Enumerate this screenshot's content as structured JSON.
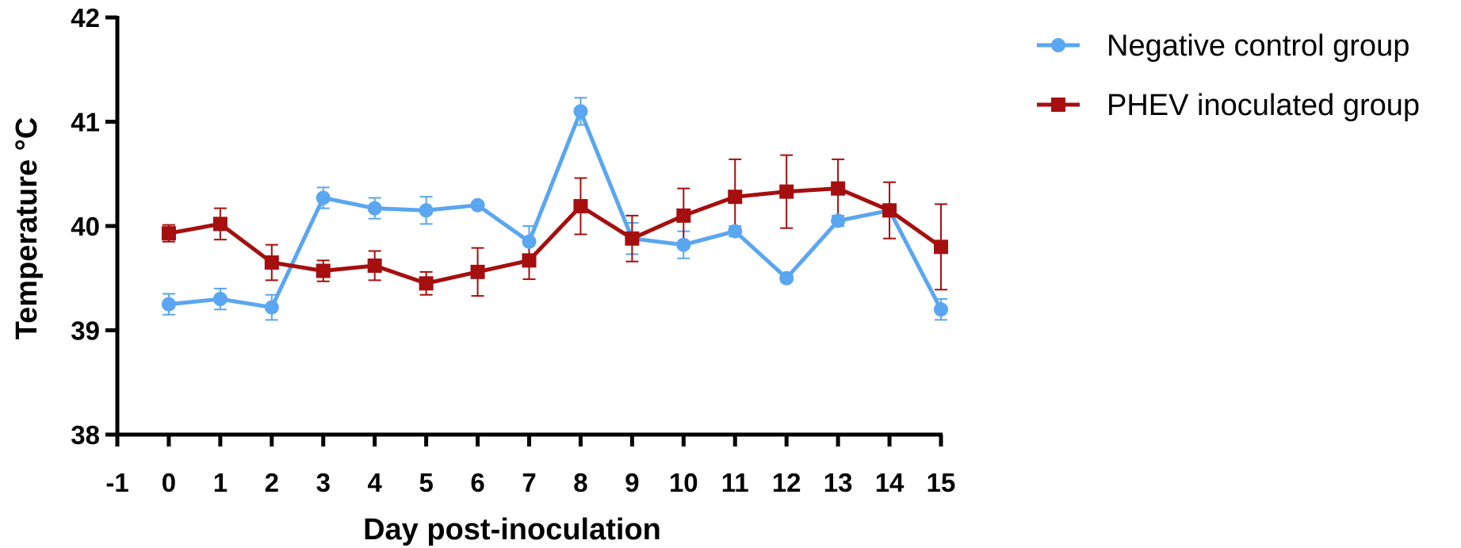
{
  "chart_data": {
    "type": "line",
    "xlabel": "Day post-inoculation",
    "ylabel": "Temperature °C",
    "xlim": [
      -1,
      15
    ],
    "ylim": [
      38,
      42
    ],
    "xticks": [
      -1,
      0,
      1,
      2,
      3,
      4,
      5,
      6,
      7,
      8,
      9,
      10,
      11,
      12,
      13,
      14,
      15
    ],
    "yticks": [
      38,
      39,
      40,
      41,
      42
    ],
    "grid": false,
    "legend_position": "top-right",
    "x": [
      0,
      1,
      2,
      3,
      4,
      5,
      6,
      7,
      8,
      9,
      10,
      11,
      12,
      13,
      14,
      15
    ],
    "series": [
      {
        "name": "Negative control group",
        "color": "#5aa6f0",
        "marker": "circle",
        "values": [
          39.25,
          39.3,
          39.22,
          40.27,
          40.17,
          40.15,
          40.2,
          39.85,
          41.1,
          39.88,
          39.82,
          39.95,
          39.5,
          40.05,
          40.15,
          39.2
        ],
        "errors": [
          0.1,
          0.1,
          0.12,
          0.1,
          0.1,
          0.13,
          0.03,
          0.15,
          0.13,
          0.15,
          0.13,
          0.05,
          0.03,
          0.05,
          0.03,
          0.1
        ]
      },
      {
        "name": "PHEV inoculated group",
        "color": "#a50f0f",
        "marker": "square",
        "values": [
          39.93,
          40.02,
          39.65,
          39.57,
          39.62,
          39.45,
          39.56,
          39.67,
          40.19,
          39.88,
          40.1,
          40.28,
          40.33,
          40.36,
          40.15,
          39.8
        ],
        "errors": [
          0.08,
          0.15,
          0.17,
          0.1,
          0.14,
          0.11,
          0.23,
          0.18,
          0.27,
          0.22,
          0.26,
          0.36,
          0.35,
          0.28,
          0.27,
          0.41
        ]
      }
    ]
  }
}
